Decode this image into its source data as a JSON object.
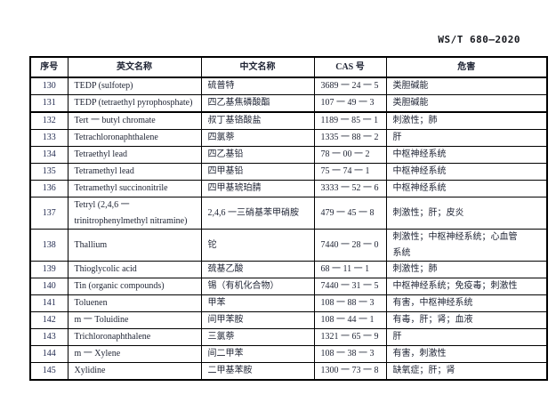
{
  "header": {
    "standard_number": "WS/T 680—2020"
  },
  "table": {
    "columns": [
      {
        "key": "no",
        "label": "序号"
      },
      {
        "key": "en",
        "label": "英文名称"
      },
      {
        "key": "zh",
        "label": "中文名称"
      },
      {
        "key": "cas",
        "label": "CAS 号"
      },
      {
        "key": "hazard",
        "label": "危害"
      }
    ],
    "rows": [
      {
        "no": "130",
        "en": "TEDP (sulfotep)",
        "zh": "硫普特",
        "cas": "3689 一 24 一 5",
        "hazard": "类胆碱能"
      },
      {
        "no": "131",
        "en": "TEDP (tetraethyl pyrophosphate)",
        "zh": "四乙基焦磷酸酯",
        "cas": "107 一 49 一 3",
        "hazard": "类胆碱能"
      },
      {
        "no": "132",
        "en": "Tert 一 butyl chromate",
        "zh": "叔丁基铬酸盐",
        "cas": "1189 一 85 一 1",
        "hazard": "刺激性；肺"
      },
      {
        "no": "133",
        "en": "Tetrachloronaphthalene",
        "zh": "四氯萘",
        "cas": "1335 一 88 一 2",
        "hazard": "肝"
      },
      {
        "no": "134",
        "en": "Tetraethyl lead",
        "zh": "四乙基铅",
        "cas": "78 一 00 一 2",
        "hazard": "中枢神经系统"
      },
      {
        "no": "135",
        "en": "Tetramethyl lead",
        "zh": "四甲基铅",
        "cas": "75 一 74 一 1",
        "hazard": "中枢神经系统"
      },
      {
        "no": "136",
        "en": "Tetramethyl succinonitrile",
        "zh": "四甲基琥珀腈",
        "cas": "3333 一 52 一 6",
        "hazard": "中枢神经系统"
      },
      {
        "no": "137",
        "en": "Tetryl (2,4,6 一\ntrinitrophenylmethyl nitramine)",
        "zh": "2,4,6 一三硝基苯甲硝胺",
        "cas": "479 一 45 一 8",
        "hazard": "刺激性；肝；皮炎"
      },
      {
        "no": "138",
        "en": "Thallium",
        "zh": "铊",
        "cas": "7440 一 28 一 0",
        "hazard": "刺激性；中枢神经系统；心血管\n系统"
      },
      {
        "no": "139",
        "en": "Thioglycolic acid",
        "zh": "巯基乙酸",
        "cas": "68 一 11 一 1",
        "hazard": "刺激性；肺"
      },
      {
        "no": "140",
        "en": "Tin (organic compounds)",
        "zh": "锡（有机化合物）",
        "cas": "7440 一 31 一 5",
        "hazard": "中枢神经系统；免疫毒；刺激性"
      },
      {
        "no": "141",
        "en": "Toluenen",
        "zh": "甲苯",
        "cas": "108 一 88 一 3",
        "hazard": "有害，中枢神经系统"
      },
      {
        "no": "142",
        "en": "m 一 Toluidine",
        "zh": "间甲苯胺",
        "cas": "108 一 44 一 1",
        "hazard": "有毒，肝；肾；血液"
      },
      {
        "no": "143",
        "en": "Trichloronaphthalene",
        "zh": "三氯萘",
        "cas": "1321 一 65 一 9",
        "hazard": "肝"
      },
      {
        "no": "144",
        "en": "m 一 Xylene",
        "zh": "间二甲苯",
        "cas": "108 一 38 一 3",
        "hazard": "有害，刺激性"
      },
      {
        "no": "145",
        "en": "Xylidine",
        "zh": "二甲基苯胺",
        "cas": "1300 一 73 一 8",
        "hazard": "缺氧症；肝；肾"
      }
    ]
  }
}
